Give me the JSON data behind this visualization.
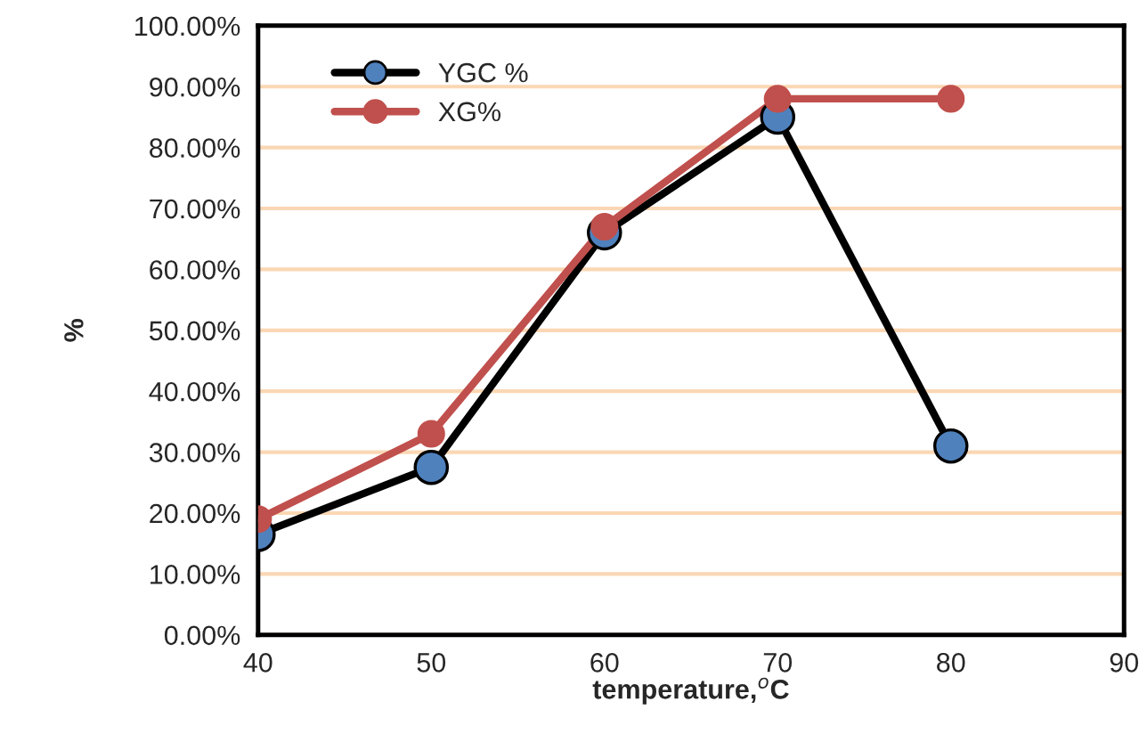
{
  "chart_data": {
    "type": "line",
    "xlabel": "temperature,$^{o}$C",
    "ylabel": "%",
    "x": [
      40,
      50,
      60,
      70,
      80
    ],
    "series": [
      {
        "name": "YGC %",
        "color": "#000000",
        "colors": [
          "#4f81bd",
          "#4f81bd",
          "#4f81bd",
          "#4f81bd",
          "#4f81bd"
        ],
        "values": [
          16.5,
          27.5,
          66,
          85,
          31
        ]
      },
      {
        "name": "XG%",
        "color": "#c0504d",
        "values": [
          19,
          33,
          67,
          88,
          88
        ]
      }
    ],
    "xlim": [
      40,
      90
    ],
    "xticks": [
      40,
      50,
      60,
      70,
      80,
      90
    ],
    "ylim": [
      0,
      100
    ],
    "yticks": [
      {
        "value": 0,
        "label": "0.00%"
      },
      {
        "value": 10,
        "label": "10.00%"
      },
      {
        "value": 20,
        "label": "20.00%"
      },
      {
        "value": 30,
        "label": "30.00%"
      },
      {
        "value": 40,
        "label": "40.00%"
      },
      {
        "value": 50,
        "label": "50.00%"
      },
      {
        "value": 60,
        "label": "60.00%"
      },
      {
        "value": 70,
        "label": "70.00%"
      },
      {
        "value": 80,
        "label": "80.00%"
      },
      {
        "value": 90,
        "label": "90.00%"
      },
      {
        "value": 100,
        "label": "100.00%"
      }
    ],
    "grid": "y",
    "legend": "top left",
    "marker": "circle",
    "line_style": "solid"
  }
}
